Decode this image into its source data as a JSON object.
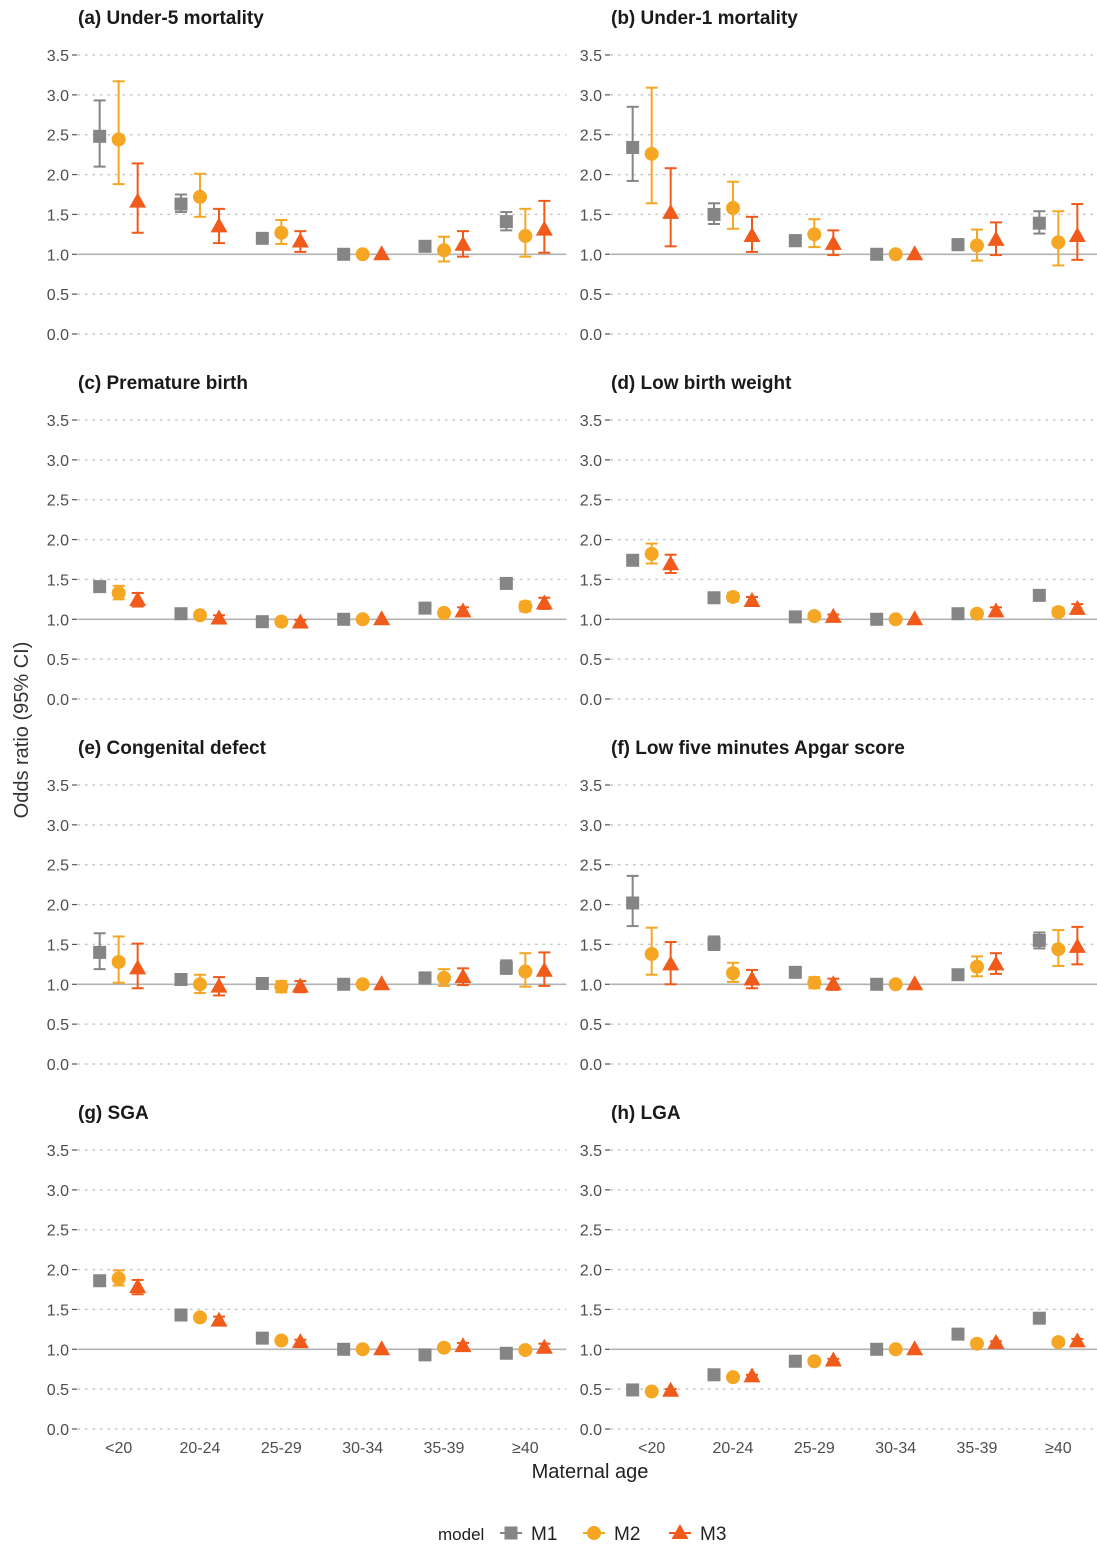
{
  "figure": {
    "y_axis_title": "Odds ratio (95% CI)",
    "x_axis_title": "Maternal age",
    "legend_title": "model",
    "legend_position": "bottom"
  },
  "chart_data": {
    "type": "scatter",
    "categories": [
      "<20",
      "20-24",
      "25-29",
      "30-34",
      "35-39",
      "≥40"
    ],
    "y_ticks": [
      "0.0",
      "0.5",
      "1.0",
      "1.5",
      "2.0",
      "2.5",
      "3.0",
      "3.5"
    ],
    "ylim": [
      0,
      3.6
    ],
    "reference_line": 1.0,
    "grid": "horizontal dotted",
    "series_styles": [
      {
        "name": "M1",
        "color": "#858585",
        "shape": "square"
      },
      {
        "name": "M2",
        "color": "#F5A623",
        "shape": "circle"
      },
      {
        "name": "M3",
        "color": "#F05A1A",
        "shape": "triangle"
      }
    ],
    "panels": [
      {
        "title": "(a) Under-5 mortality",
        "series": [
          {
            "name": "M1",
            "values": [
              2.48,
              1.63,
              1.2,
              1.0,
              1.1,
              1.41
            ],
            "lower": [
              2.1,
              1.53,
              1.16,
              1.0,
              1.05,
              1.3
            ],
            "upper": [
              2.93,
              1.75,
              1.25,
              1.0,
              1.15,
              1.53
            ]
          },
          {
            "name": "M2",
            "values": [
              2.44,
              1.72,
              1.27,
              1.0,
              1.05,
              1.23
            ],
            "lower": [
              1.88,
              1.47,
              1.13,
              1.0,
              0.91,
              0.97
            ],
            "upper": [
              3.17,
              2.01,
              1.43,
              1.0,
              1.22,
              1.57
            ]
          },
          {
            "name": "M3",
            "values": [
              1.66,
              1.35,
              1.16,
              1.0,
              1.12,
              1.31
            ],
            "lower": [
              1.27,
              1.14,
              1.03,
              1.0,
              0.97,
              1.02
            ],
            "upper": [
              2.14,
              1.57,
              1.29,
              1.0,
              1.29,
              1.67
            ]
          }
        ]
      },
      {
        "title": "(b) Under-1 mortality",
        "series": [
          {
            "name": "M1",
            "values": [
              2.34,
              1.5,
              1.17,
              1.0,
              1.12,
              1.39
            ],
            "lower": [
              1.92,
              1.38,
              1.11,
              1.0,
              1.06,
              1.26
            ],
            "upper": [
              2.85,
              1.64,
              1.24,
              1.0,
              1.19,
              1.54
            ]
          },
          {
            "name": "M2",
            "values": [
              2.26,
              1.58,
              1.25,
              1.0,
              1.11,
              1.15
            ],
            "lower": [
              1.64,
              1.32,
              1.09,
              1.0,
              0.92,
              0.86
            ],
            "upper": [
              3.09,
              1.91,
              1.44,
              1.0,
              1.31,
              1.54
            ]
          },
          {
            "name": "M3",
            "values": [
              1.52,
              1.23,
              1.13,
              1.0,
              1.18,
              1.23
            ],
            "lower": [
              1.1,
              1.03,
              0.99,
              1.0,
              0.99,
              0.93
            ],
            "upper": [
              2.08,
              1.47,
              1.3,
              1.0,
              1.4,
              1.63
            ]
          }
        ]
      },
      {
        "title": "(c) Premature birth",
        "series": [
          {
            "name": "M1",
            "values": [
              1.41,
              1.07,
              0.97,
              1.0,
              1.14,
              1.45
            ],
            "lower": [
              1.38,
              1.05,
              0.96,
              1.0,
              1.12,
              1.42
            ],
            "upper": [
              1.44,
              1.09,
              0.98,
              1.0,
              1.16,
              1.48
            ]
          },
          {
            "name": "M2",
            "values": [
              1.33,
              1.05,
              0.97,
              1.0,
              1.08,
              1.16
            ],
            "lower": [
              1.25,
              1.01,
              0.94,
              1.0,
              1.04,
              1.1
            ],
            "upper": [
              1.42,
              1.09,
              1.0,
              1.0,
              1.12,
              1.22
            ]
          },
          {
            "name": "M3",
            "values": [
              1.24,
              1.01,
              0.96,
              1.0,
              1.1,
              1.2
            ],
            "lower": [
              1.16,
              0.97,
              0.93,
              1.0,
              1.06,
              1.13
            ],
            "upper": [
              1.33,
              1.05,
              0.99,
              1.0,
              1.15,
              1.27
            ]
          }
        ]
      },
      {
        "title": "(d) Low birth weight",
        "series": [
          {
            "name": "M1",
            "values": [
              1.74,
              1.27,
              1.03,
              1.0,
              1.07,
              1.3
            ],
            "lower": [
              1.7,
              1.25,
              1.02,
              1.0,
              1.05,
              1.27
            ],
            "upper": [
              1.78,
              1.29,
              1.04,
              1.0,
              1.09,
              1.33
            ]
          },
          {
            "name": "M2",
            "values": [
              1.82,
              1.28,
              1.04,
              1.0,
              1.07,
              1.09
            ],
            "lower": [
              1.7,
              1.23,
              1.01,
              1.0,
              1.03,
              1.04
            ],
            "upper": [
              1.95,
              1.33,
              1.07,
              1.0,
              1.11,
              1.14
            ]
          },
          {
            "name": "M3",
            "values": [
              1.69,
              1.23,
              1.03,
              1.0,
              1.1,
              1.13
            ],
            "lower": [
              1.58,
              1.18,
              1.0,
              1.0,
              1.05,
              1.07
            ],
            "upper": [
              1.81,
              1.28,
              1.06,
              1.0,
              1.15,
              1.19
            ]
          }
        ]
      },
      {
        "title": "(e) Congenital defect",
        "series": [
          {
            "name": "M1",
            "values": [
              1.4,
              1.06,
              1.01,
              1.0,
              1.08,
              1.21
            ],
            "lower": [
              1.19,
              1.01,
              0.98,
              1.0,
              1.03,
              1.13
            ],
            "upper": [
              1.64,
              1.11,
              1.04,
              1.0,
              1.13,
              1.3
            ]
          },
          {
            "name": "M2",
            "values": [
              1.28,
              1.0,
              0.97,
              1.0,
              1.08,
              1.16
            ],
            "lower": [
              1.02,
              0.89,
              0.9,
              1.0,
              0.98,
              0.97
            ],
            "upper": [
              1.6,
              1.12,
              1.04,
              1.0,
              1.19,
              1.39
            ]
          },
          {
            "name": "M3",
            "values": [
              1.2,
              0.97,
              0.97,
              1.0,
              1.09,
              1.17
            ],
            "lower": [
              0.95,
              0.86,
              0.9,
              1.0,
              0.99,
              0.98
            ],
            "upper": [
              1.51,
              1.09,
              1.04,
              1.0,
              1.2,
              1.4
            ]
          }
        ]
      },
      {
        "title": "(f) Low five minutes Apgar score",
        "series": [
          {
            "name": "M1",
            "values": [
              2.02,
              1.51,
              1.15,
              1.0,
              1.12,
              1.55
            ],
            "lower": [
              1.73,
              1.43,
              1.11,
              1.0,
              1.07,
              1.45
            ],
            "upper": [
              2.36,
              1.6,
              1.19,
              1.0,
              1.17,
              1.65
            ]
          },
          {
            "name": "M2",
            "values": [
              1.38,
              1.14,
              1.02,
              1.0,
              1.22,
              1.44
            ],
            "lower": [
              1.12,
              1.03,
              0.95,
              1.0,
              1.1,
              1.23
            ],
            "upper": [
              1.71,
              1.27,
              1.09,
              1.0,
              1.35,
              1.68
            ]
          },
          {
            "name": "M3",
            "values": [
              1.25,
              1.06,
              1.0,
              1.0,
              1.25,
              1.47
            ],
            "lower": [
              1.0,
              0.95,
              0.93,
              1.0,
              1.13,
              1.25
            ],
            "upper": [
              1.53,
              1.18,
              1.07,
              1.0,
              1.39,
              1.72
            ]
          }
        ]
      },
      {
        "title": "(g) SGA",
        "series": [
          {
            "name": "M1",
            "values": [
              1.86,
              1.43,
              1.14,
              1.0,
              0.93,
              0.95
            ],
            "lower": [
              1.83,
              1.41,
              1.13,
              1.0,
              0.92,
              0.93
            ],
            "upper": [
              1.89,
              1.45,
              1.15,
              1.0,
              0.94,
              0.97
            ]
          },
          {
            "name": "M2",
            "values": [
              1.89,
              1.4,
              1.11,
              1.0,
              1.02,
              0.99
            ],
            "lower": [
              1.8,
              1.36,
              1.08,
              1.0,
              0.99,
              0.95
            ],
            "upper": [
              1.99,
              1.44,
              1.14,
              1.0,
              1.05,
              1.03
            ]
          },
          {
            "name": "M3",
            "values": [
              1.78,
              1.36,
              1.09,
              1.0,
              1.04,
              1.02
            ],
            "lower": [
              1.69,
              1.31,
              1.06,
              1.0,
              1.0,
              0.97
            ],
            "upper": [
              1.87,
              1.41,
              1.12,
              1.0,
              1.08,
              1.07
            ]
          }
        ]
      },
      {
        "title": "(h) LGA",
        "series": [
          {
            "name": "M1",
            "values": [
              0.49,
              0.68,
              0.85,
              1.0,
              1.19,
              1.39
            ],
            "lower": [
              0.48,
              0.67,
              0.84,
              1.0,
              1.18,
              1.37
            ],
            "upper": [
              0.5,
              0.69,
              0.86,
              1.0,
              1.2,
              1.41
            ]
          },
          {
            "name": "M2",
            "values": [
              0.47,
              0.65,
              0.85,
              1.0,
              1.07,
              1.09
            ],
            "lower": [
              0.45,
              0.63,
              0.83,
              1.0,
              1.05,
              1.06
            ],
            "upper": [
              0.49,
              0.67,
              0.87,
              1.0,
              1.09,
              1.12
            ]
          },
          {
            "name": "M3",
            "values": [
              0.48,
              0.66,
              0.86,
              1.0,
              1.08,
              1.1
            ],
            "lower": [
              0.46,
              0.64,
              0.84,
              1.0,
              1.06,
              1.07
            ],
            "upper": [
              0.5,
              0.68,
              0.88,
              1.0,
              1.1,
              1.13
            ]
          }
        ]
      }
    ]
  }
}
